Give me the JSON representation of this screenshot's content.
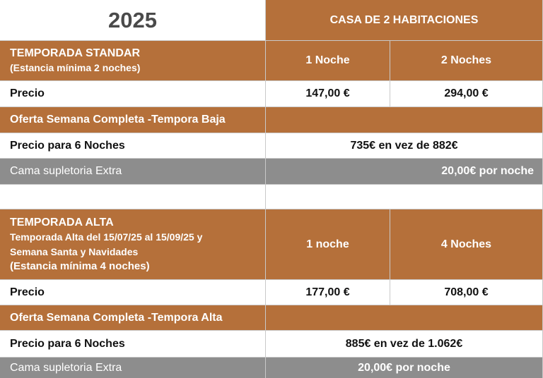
{
  "year": "2025",
  "house_title": "CASA DE 2 HABITACIONES",
  "standard": {
    "title": "TEMPORADA STANDAR",
    "subtitle": "(Estancia mínima 2 noches)",
    "col1": "1 Noche",
    "col2": "2 Noches",
    "price_label": "Precio",
    "price_1": "147,00 €",
    "price_2": "294,00 €",
    "offer_title": "Oferta Semana Completa -Tempora Baja",
    "offer_label": "Precio para 6 Noches",
    "offer_value": "735€ en vez de 882€",
    "extra_label": "Cama supletoria Extra",
    "extra_value": "20,00€ por noche"
  },
  "high": {
    "title": "TEMPORADA ALTA",
    "line1": "Temporada Alta del 15/07/25 al 15/09/25 y",
    "line2": "Semana Santa y Navidades",
    "line3": "(Estancia mínima 4 noches)",
    "col1": "1 noche",
    "col2": "4 Noches",
    "price_label": "Precio",
    "price_1": "177,00 €",
    "price_2": "708,00 €",
    "offer_title": "Oferta Semana Completa -Tempora Alta",
    "offer_label": "Precio para 6 Noches",
    "offer_value": "885€ en vez de 1.062€",
    "extra_label": "Cama supletoria Extra",
    "extra_value": "20,00€ por noche"
  },
  "colors": {
    "header_brown": "#b5703a",
    "extra_grey": "#8d8d8d",
    "year_text": "#4a4a4a"
  }
}
